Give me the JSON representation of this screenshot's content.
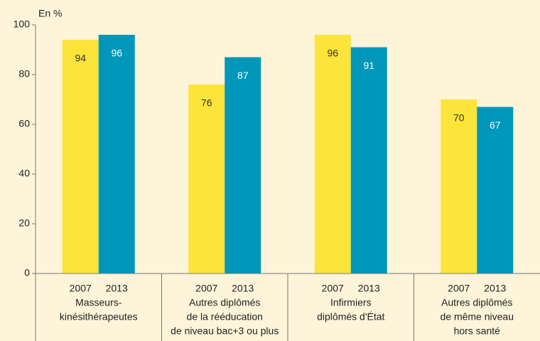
{
  "chart_data": {
    "type": "bar",
    "y_axis_label": "En %",
    "categories": [
      [
        "Masseurs-",
        "kinésithérapeutes"
      ],
      [
        "Autres diplômés",
        "de la rééducation",
        "de niveau bac+3 ou plus"
      ],
      [
        "Infirmiers",
        "diplômés d'État"
      ],
      [
        "Autres diplômés",
        "de même niveau",
        "hors santé"
      ]
    ],
    "series": [
      {
        "name": "2007",
        "color": "#fde43a",
        "label_color": "#333333",
        "values": [
          94,
          76,
          96,
          70
        ]
      },
      {
        "name": "2013",
        "color": "#0097ba",
        "label_color": "#ffffff",
        "values": [
          96,
          87,
          91,
          67
        ]
      }
    ],
    "ylim": [
      0,
      100
    ],
    "yticks": [
      0,
      20,
      40,
      60,
      80,
      100
    ]
  }
}
